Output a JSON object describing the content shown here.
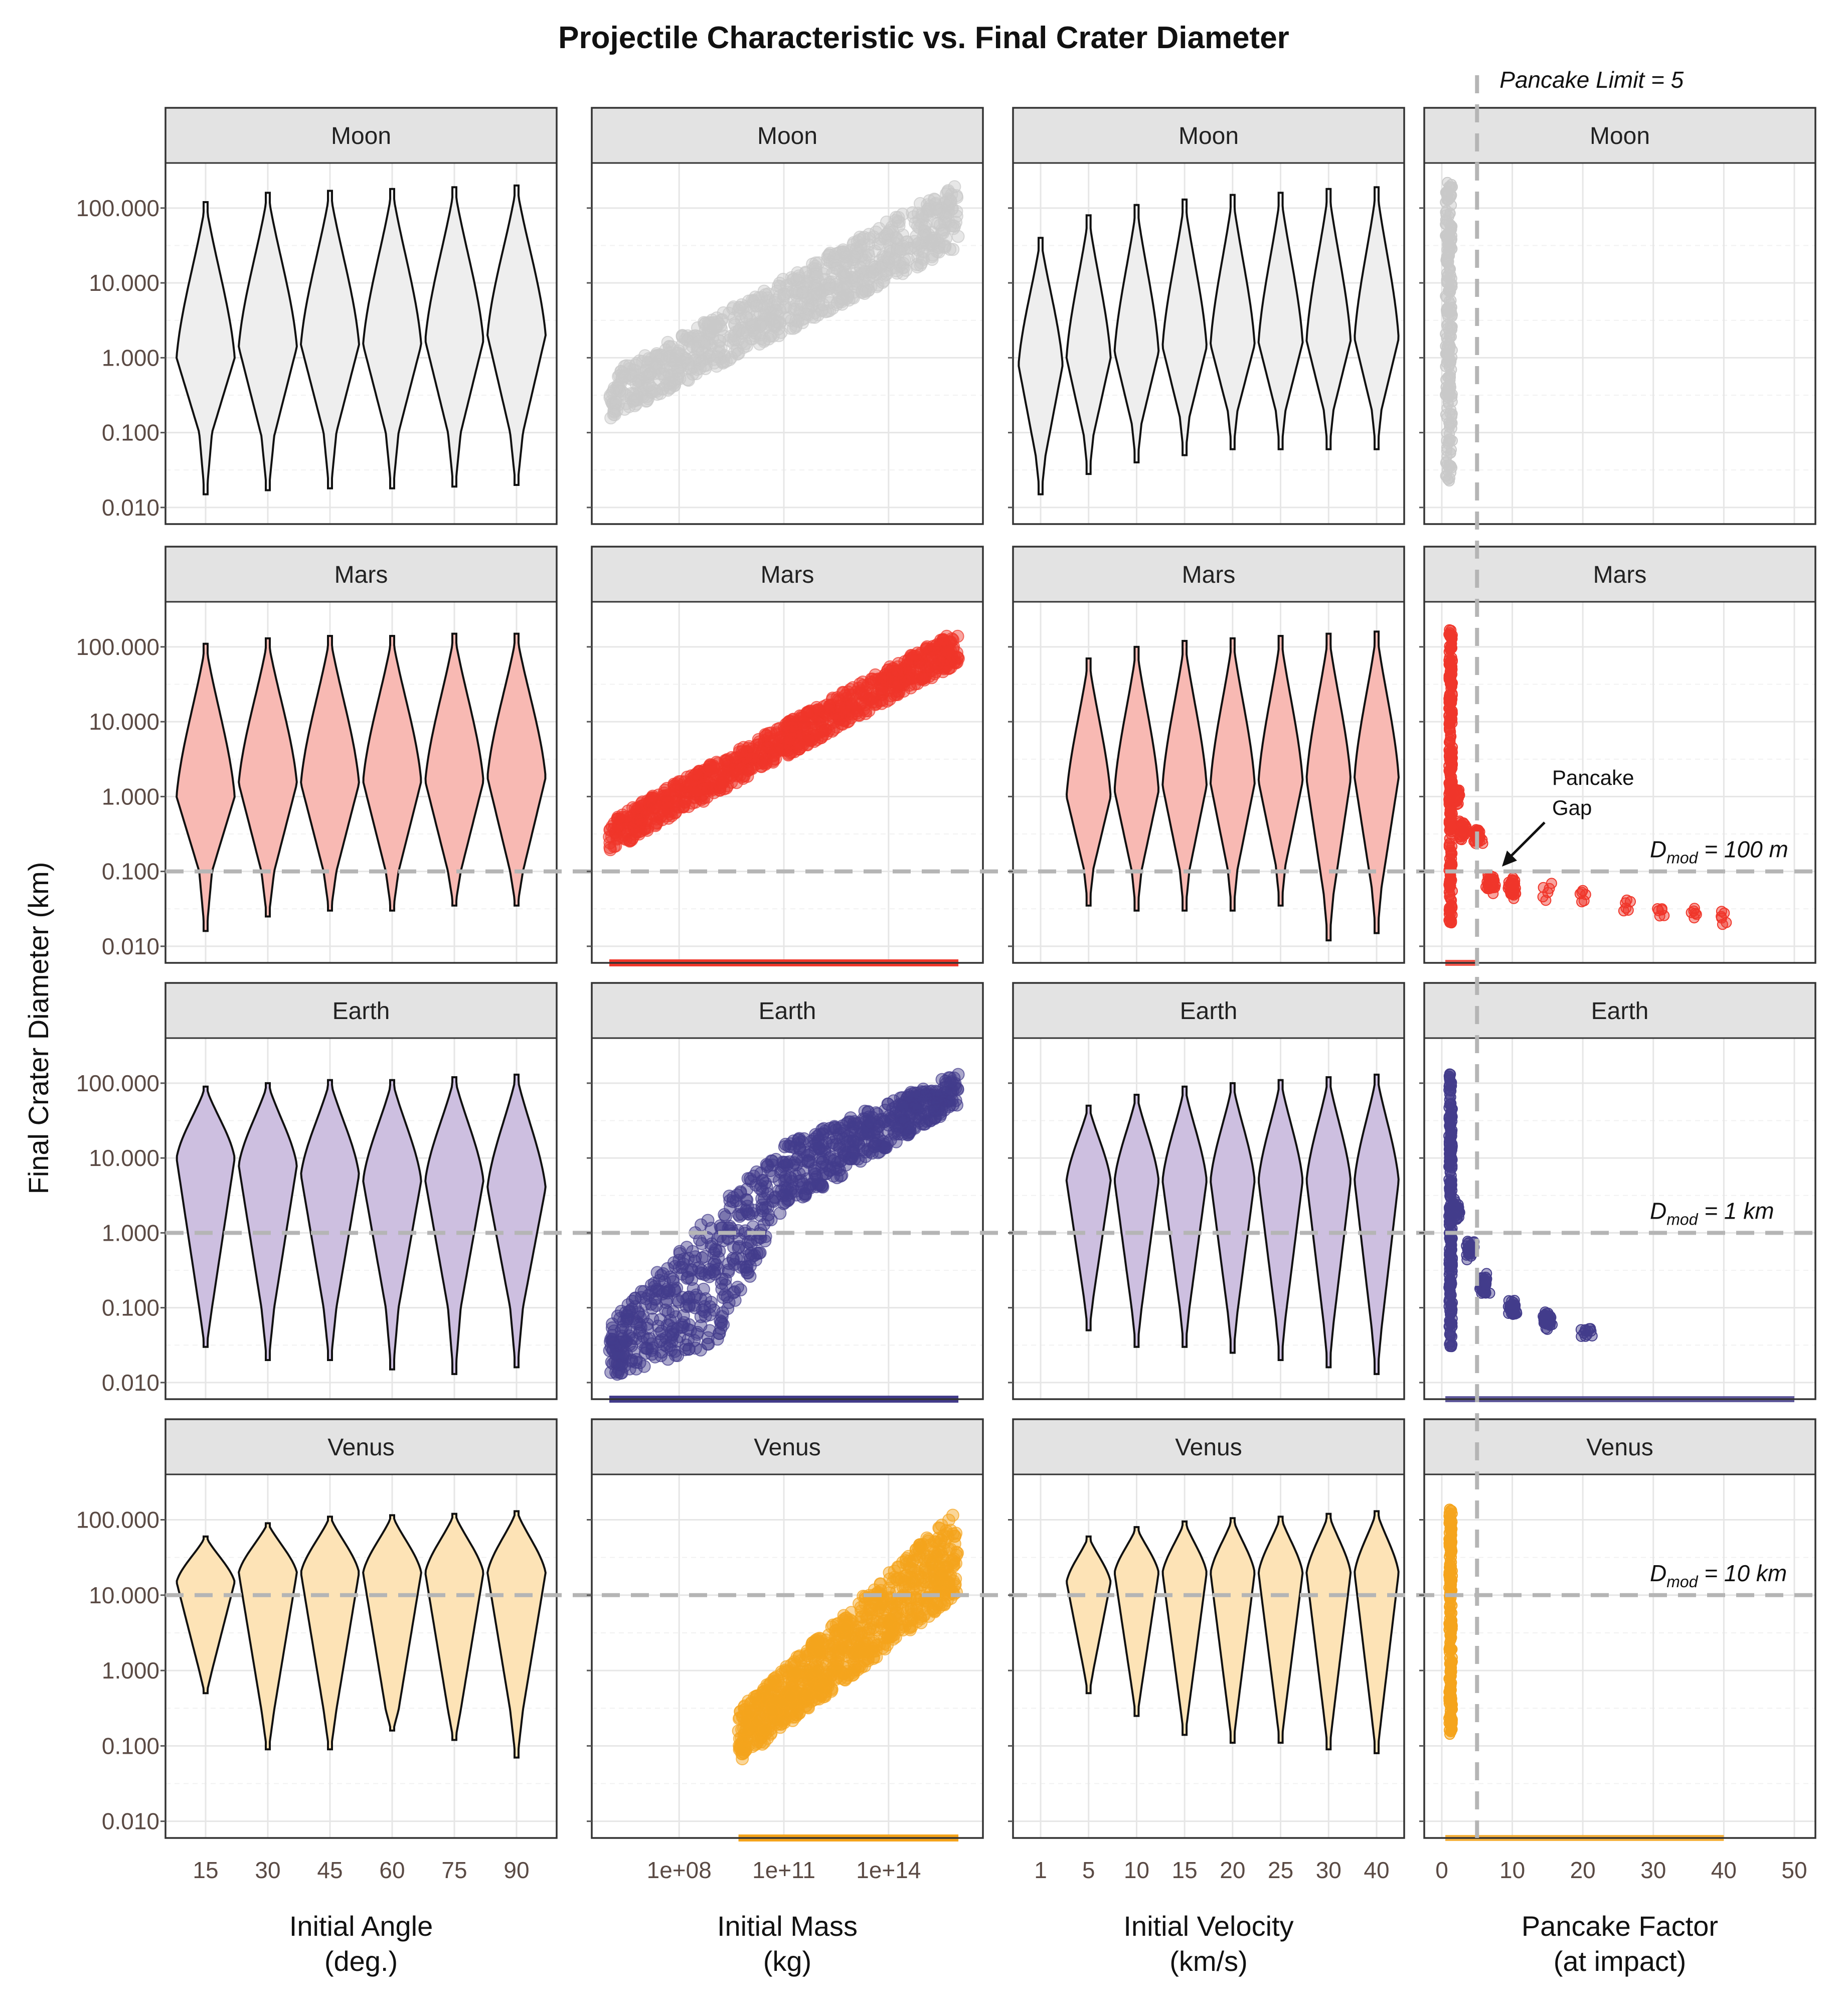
{
  "title": "Projectile Characteristic vs. Final Crater Diameter",
  "y_axis_title": "Final Crater Diameter (km)",
  "x_axis_titles": [
    [
      "Initial Angle",
      "(deg.)"
    ],
    [
      "Initial Mass",
      "(kg)"
    ],
    [
      "Initial Velocity",
      "(km/s)"
    ],
    [
      "Pancake Factor",
      "(at impact)"
    ]
  ],
  "rows": [
    "Moon",
    "Mars",
    "Earth",
    "Venus"
  ],
  "colors": {
    "Moon": {
      "fill": "#eeeeee",
      "point": "#c9c9c9"
    },
    "Mars": {
      "fill": "#f8b9b3",
      "point": "#f0362a"
    },
    "Earth": {
      "fill": "#cdbfe0",
      "point": "#433c8b"
    },
    "Venus": {
      "fill": "#fde3b6",
      "point": "#f5a41c"
    }
  },
  "y_ticks": [
    "0.010",
    "0.100",
    "1.000",
    "10.000",
    "100.000"
  ],
  "x_ticks": {
    "angle": [
      "15",
      "30",
      "45",
      "60",
      "75",
      "90"
    ],
    "mass": [
      "1e+08",
      "1e+11",
      "1e+14"
    ],
    "velocity": [
      "1",
      "5",
      "10",
      "15",
      "20",
      "25",
      "30",
      "40"
    ],
    "pancake": [
      "0",
      "10",
      "20",
      "30",
      "40",
      "50"
    ]
  },
  "annotations": {
    "pancake_limit": "Pancake Limit = 5",
    "pancake_gap": [
      "Pancake",
      "Gap"
    ],
    "dmod": [
      {
        "row": "Mars",
        "sym": "D",
        "sub": "mod",
        "rest": " = 100 m",
        "y": 0.1
      },
      {
        "row": "Earth",
        "sym": "D",
        "sub": "mod",
        "rest": " = 1 km",
        "y": 1
      },
      {
        "row": "Venus",
        "sym": "D",
        "sub": "mod",
        "rest": " = 10 km",
        "y": 10
      }
    ]
  },
  "chart_data": {
    "type": "violin+scatter",
    "title": "Projectile Characteristic vs. Final Crater Diameter",
    "ylabel": "Final Crater Diameter (km)",
    "yscale": "log",
    "ylim": [
      0.006,
      400
    ],
    "legend": "none",
    "grid": true,
    "reference_lines": {
      "pancake_limit_x": 5,
      "dmod_km": {
        "Mars": 0.1,
        "Earth": 1,
        "Venus": 10
      }
    },
    "angle_violins": {
      "categories": [
        15,
        30,
        45,
        60,
        75,
        90
      ],
      "Moon": {
        "max": [
          120,
          160,
          170,
          180,
          190,
          200
        ],
        "min": [
          0.015,
          0.017,
          0.018,
          0.018,
          0.019,
          0.02
        ],
        "neck": [
          0.1,
          0.09,
          0.1,
          0.1,
          0.1,
          0.1
        ],
        "median": [
          1,
          1.4,
          1.5,
          1.5,
          1.7,
          2
        ]
      },
      "Mars": {
        "max": [
          110,
          130,
          140,
          140,
          150,
          150
        ],
        "min": [
          0.016,
          0.025,
          0.03,
          0.03,
          0.035,
          0.035
        ],
        "neck": [
          0.1,
          0.1,
          0.1,
          0.1,
          0.1,
          0.1
        ],
        "median": [
          1,
          1.5,
          1.5,
          1.6,
          1.6,
          1.8
        ]
      },
      "Earth": {
        "max": [
          90,
          100,
          110,
          110,
          120,
          130
        ],
        "min": [
          0.03,
          0.02,
          0.02,
          0.015,
          0.013,
          0.016
        ],
        "neck": [
          0.1,
          0.1,
          0.1,
          0.1,
          0.1,
          0.1
        ],
        "median": [
          10,
          8,
          6,
          5,
          5,
          4
        ]
      },
      "Venus": {
        "max": [
          60,
          90,
          110,
          115,
          120,
          130
        ],
        "min": [
          0.5,
          0.09,
          0.09,
          0.16,
          0.12,
          0.07
        ],
        "neck": [
          1,
          0.3,
          0.3,
          0.3,
          0.3,
          0.3
        ],
        "median": [
          15,
          20,
          20,
          20,
          20,
          20
        ]
      }
    },
    "velocity_violins": {
      "categories": [
        1,
        5,
        10,
        15,
        20,
        25,
        30,
        40
      ],
      "Moon": {
        "x": [
          1,
          5,
          10,
          15,
          20,
          25,
          30,
          40
        ],
        "max": [
          40,
          80,
          110,
          130,
          150,
          160,
          180,
          190
        ],
        "min": [
          0.015,
          0.028,
          0.04,
          0.05,
          0.06,
          0.06,
          0.06,
          0.06
        ],
        "median": [
          0.8,
          1,
          1.2,
          1.4,
          1.5,
          1.6,
          1.7,
          1.8
        ]
      },
      "Mars": {
        "x": [
          5,
          10,
          15,
          20,
          25,
          30,
          40
        ],
        "max": [
          70,
          100,
          120,
          130,
          140,
          150,
          160
        ],
        "min": [
          0.035,
          0.03,
          0.03,
          0.03,
          0.035,
          0.012,
          0.015
        ],
        "median": [
          1,
          1.2,
          1.4,
          1.5,
          1.6,
          1.7,
          1.8
        ]
      },
      "Earth": {
        "x": [
          5,
          10,
          15,
          20,
          25,
          30,
          40
        ],
        "max": [
          50,
          70,
          90,
          100,
          110,
          120,
          130
        ],
        "min": [
          0.05,
          0.03,
          0.03,
          0.025,
          0.02,
          0.016,
          0.013
        ],
        "median": [
          5,
          5,
          5,
          5,
          5,
          5,
          5
        ]
      },
      "Venus": {
        "x": [
          5,
          10,
          15,
          20,
          25,
          30,
          40
        ],
        "max": [
          60,
          80,
          95,
          105,
          110,
          120,
          130
        ],
        "min": [
          0.5,
          0.25,
          0.14,
          0.11,
          0.11,
          0.09,
          0.08
        ],
        "median": [
          15,
          20,
          20,
          20,
          20,
          20,
          20
        ]
      }
    },
    "mass_scatter": {
      "x_log10_kg": [
        6,
        16
      ],
      "Moon": {
        "lower": [
          [
            6,
            0.15
          ],
          [
            16,
            30
          ]
        ],
        "upper": [
          [
            6,
            0.6
          ],
          [
            16,
            220
          ]
        ]
      },
      "Mars": {
        "lower": [
          [
            6,
            0.18
          ],
          [
            16,
            60
          ]
        ],
        "upper": [
          [
            6,
            0.5
          ],
          [
            16,
            170
          ]
        ],
        "floor_km": 0.006
      },
      "Earth": {
        "lower": [
          [
            6,
            0.012
          ],
          [
            9,
            0.03
          ],
          [
            11,
            2
          ],
          [
            16,
            50
          ]
        ],
        "upper": [
          [
            6,
            0.06
          ],
          [
            9,
            2
          ],
          [
            11,
            15
          ],
          [
            16,
            140
          ]
        ],
        "floor_km": 0.006
      },
      "Venus": {
        "x_start": 9.7,
        "lower": [
          [
            9.7,
            0.06
          ],
          [
            16,
            10
          ]
        ],
        "upper": [
          [
            9.7,
            0.3
          ],
          [
            16,
            140
          ]
        ],
        "floor_km": 0.006
      }
    },
    "pancake_scatter": {
      "Moon": {
        "x_range": [
          0.5,
          1.5
        ],
        "y_range": [
          0.02,
          220
        ]
      },
      "Mars": {
        "column_x": [
          1,
          1.5
        ],
        "y_range": [
          0.02,
          170
        ],
        "tail": [
          [
            2,
            1
          ],
          [
            3,
            0.35
          ],
          [
            5,
            0.3
          ],
          [
            7,
            0.07
          ],
          [
            10,
            0.06
          ],
          [
            15,
            0.055
          ],
          [
            20,
            0.045
          ],
          [
            26,
            0.035
          ],
          [
            31,
            0.032
          ],
          [
            36,
            0.028
          ],
          [
            40,
            0.024
          ]
        ],
        "floor_km": 0.006
      },
      "Earth": {
        "column_x": [
          1,
          1.5
        ],
        "y_range": [
          0.03,
          140
        ],
        "tail": [
          [
            2,
            2
          ],
          [
            4,
            0.6
          ],
          [
            6,
            0.2
          ],
          [
            10,
            0.1
          ],
          [
            15,
            0.07
          ],
          [
            20,
            0.05
          ],
          [
            21,
            0.045
          ]
        ],
        "floor_km": 0.006,
        "floor_x_max": 50
      },
      "Venus": {
        "column_x": [
          1,
          1.5
        ],
        "y_range": [
          0.14,
          140
        ],
        "floor_km": 0.006,
        "floor_x_max": 40
      }
    }
  }
}
